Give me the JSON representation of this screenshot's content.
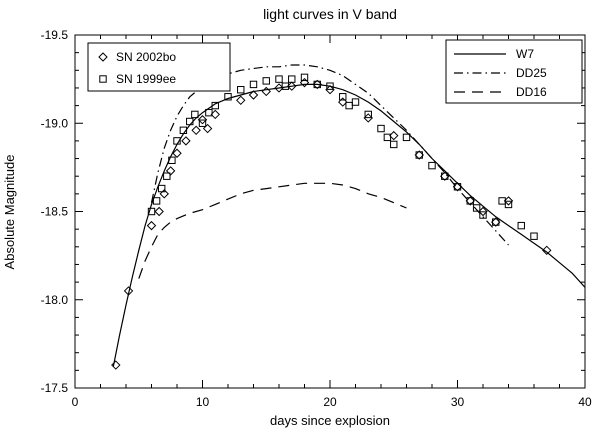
{
  "chart_data": {
    "type": "line",
    "title": "light curves in V band",
    "xlabel": "days since explosion",
    "ylabel": "Absolute Magnitude",
    "xlim": [
      0,
      40
    ],
    "ylim_top": -19.5,
    "ylim_bottom": -17.5,
    "x_ticks": [
      0,
      10,
      20,
      30,
      40
    ],
    "x_minor_step": 2,
    "y_ticks": [
      -19.5,
      -19.0,
      -18.5,
      -18.0,
      -17.5
    ],
    "y_tick_labels": [
      "-19.5",
      "-19.0",
      "-18.5",
      "-18.0",
      "-17.5"
    ],
    "y_minor_step": 0.1,
    "grid": false,
    "colors": {
      "foreground": "#000000",
      "background": "#ffffff"
    },
    "series": [
      {
        "name": "W7",
        "style": "solid",
        "points": [
          [
            3,
            -17.62
          ],
          [
            3.5,
            -17.8
          ],
          [
            4,
            -17.97
          ],
          [
            4.5,
            -18.13
          ],
          [
            5,
            -18.28
          ],
          [
            5.5,
            -18.42
          ],
          [
            6,
            -18.54
          ],
          [
            6.5,
            -18.64
          ],
          [
            7,
            -18.73
          ],
          [
            7.5,
            -18.81
          ],
          [
            8,
            -18.88
          ],
          [
            8.5,
            -18.94
          ],
          [
            9,
            -18.99
          ],
          [
            9.5,
            -19.03
          ],
          [
            10,
            -19.06
          ],
          [
            11,
            -19.11
          ],
          [
            12,
            -19.14
          ],
          [
            13,
            -19.16
          ],
          [
            14,
            -19.18
          ],
          [
            15,
            -19.19
          ],
          [
            16,
            -19.2
          ],
          [
            17,
            -19.21
          ],
          [
            18,
            -19.22
          ],
          [
            19,
            -19.22
          ],
          [
            20,
            -19.21
          ],
          [
            21,
            -19.19
          ],
          [
            22,
            -19.16
          ],
          [
            23,
            -19.12
          ],
          [
            24,
            -19.07
          ],
          [
            25,
            -19.01
          ],
          [
            26,
            -18.95
          ],
          [
            27,
            -18.88
          ],
          [
            28,
            -18.8
          ],
          [
            29,
            -18.73
          ],
          [
            30,
            -18.66
          ],
          [
            31,
            -18.59
          ],
          [
            32,
            -18.53
          ],
          [
            33,
            -18.47
          ],
          [
            34,
            -18.42
          ],
          [
            35,
            -18.37
          ],
          [
            36,
            -18.32
          ],
          [
            37,
            -18.27
          ],
          [
            38,
            -18.21
          ],
          [
            39,
            -18.15
          ],
          [
            40,
            -18.07
          ]
        ]
      },
      {
        "name": "DD25",
        "style": "dashdot",
        "points": [
          [
            6,
            -18.55
          ],
          [
            6.5,
            -18.72
          ],
          [
            7,
            -18.86
          ],
          [
            7.5,
            -18.96
          ],
          [
            8,
            -19.04
          ],
          [
            8.5,
            -19.1
          ],
          [
            9,
            -19.15
          ],
          [
            9.5,
            -19.18
          ],
          [
            10,
            -19.21
          ],
          [
            11,
            -19.25
          ],
          [
            12,
            -19.28
          ],
          [
            13,
            -19.3
          ],
          [
            14,
            -19.31
          ],
          [
            15,
            -19.32
          ],
          [
            16,
            -19.32
          ],
          [
            17,
            -19.33
          ],
          [
            18,
            -19.33
          ],
          [
            19,
            -19.32
          ],
          [
            20,
            -19.3
          ],
          [
            21,
            -19.27
          ],
          [
            22,
            -19.22
          ],
          [
            23,
            -19.17
          ],
          [
            24,
            -19.1
          ],
          [
            25,
            -19.03
          ],
          [
            26,
            -18.96
          ],
          [
            27,
            -18.88
          ],
          [
            28,
            -18.8
          ],
          [
            29,
            -18.72
          ],
          [
            30,
            -18.63
          ],
          [
            31,
            -18.55
          ],
          [
            32,
            -18.47
          ],
          [
            33,
            -18.39
          ],
          [
            34,
            -18.31
          ]
        ]
      },
      {
        "name": "DD16",
        "style": "longdash",
        "points": [
          [
            5,
            -18.12
          ],
          [
            5.5,
            -18.22
          ],
          [
            6,
            -18.3
          ],
          [
            6.5,
            -18.37
          ],
          [
            7,
            -18.41
          ],
          [
            7.5,
            -18.44
          ],
          [
            8,
            -18.46
          ],
          [
            9,
            -18.49
          ],
          [
            10,
            -18.51
          ],
          [
            11,
            -18.54
          ],
          [
            12,
            -18.57
          ],
          [
            13,
            -18.6
          ],
          [
            14,
            -18.62
          ],
          [
            15,
            -18.63
          ],
          [
            16,
            -18.64
          ],
          [
            17,
            -18.65
          ],
          [
            18,
            -18.66
          ],
          [
            19,
            -18.66
          ],
          [
            20,
            -18.66
          ],
          [
            21,
            -18.65
          ],
          [
            22,
            -18.63
          ],
          [
            23,
            -18.6
          ],
          [
            24,
            -18.58
          ],
          [
            25,
            -18.55
          ],
          [
            26,
            -18.52
          ]
        ]
      }
    ],
    "scatter": [
      {
        "name": "SN 2002bo",
        "marker": "diamond",
        "points": [
          [
            3.2,
            -17.63
          ],
          [
            4.2,
            -18.05
          ],
          [
            6,
            -18.42
          ],
          [
            6.6,
            -18.5
          ],
          [
            7,
            -18.6
          ],
          [
            7.5,
            -18.73
          ],
          [
            8,
            -18.83
          ],
          [
            8.7,
            -18.9
          ],
          [
            9.5,
            -18.96
          ],
          [
            10,
            -19.02
          ],
          [
            10.4,
            -18.97
          ],
          [
            11,
            -19.05
          ],
          [
            13,
            -19.13
          ],
          [
            14,
            -19.16
          ],
          [
            15,
            -19.18
          ],
          [
            16,
            -19.2
          ],
          [
            17,
            -19.21
          ],
          [
            18,
            -19.23
          ],
          [
            19,
            -19.22
          ],
          [
            20,
            -19.19
          ],
          [
            21,
            -19.12
          ],
          [
            23,
            -19.03
          ],
          [
            25,
            -18.93
          ],
          [
            27,
            -18.82
          ],
          [
            29,
            -18.7
          ],
          [
            30,
            -18.64
          ],
          [
            31,
            -18.56
          ],
          [
            32,
            -18.5
          ],
          [
            33,
            -18.44
          ],
          [
            34,
            -18.56
          ],
          [
            37,
            -18.28
          ]
        ]
      },
      {
        "name": "SN 1999ee",
        "marker": "square",
        "points": [
          [
            6,
            -18.5
          ],
          [
            6.4,
            -18.56
          ],
          [
            6.8,
            -18.63
          ],
          [
            7.2,
            -18.7
          ],
          [
            7.6,
            -18.79
          ],
          [
            8,
            -18.9
          ],
          [
            8.5,
            -18.96
          ],
          [
            9,
            -19.01
          ],
          [
            9.4,
            -19.05
          ],
          [
            10,
            -19.0
          ],
          [
            10.5,
            -19.06
          ],
          [
            11,
            -19.1
          ],
          [
            12,
            -19.15
          ],
          [
            13,
            -19.19
          ],
          [
            14,
            -19.22
          ],
          [
            15,
            -19.24
          ],
          [
            16,
            -19.25
          ],
          [
            16.5,
            -19.21
          ],
          [
            17,
            -19.25
          ],
          [
            18,
            -19.26
          ],
          [
            19,
            -19.22
          ],
          [
            20,
            -19.21
          ],
          [
            21,
            -19.15
          ],
          [
            21.5,
            -19.1
          ],
          [
            22,
            -19.12
          ],
          [
            23,
            -19.05
          ],
          [
            24,
            -18.97
          ],
          [
            24.5,
            -18.92
          ],
          [
            25,
            -18.88
          ],
          [
            26,
            -18.92
          ],
          [
            27,
            -18.82
          ],
          [
            28,
            -18.76
          ],
          [
            29,
            -18.7
          ],
          [
            30,
            -18.64
          ],
          [
            31,
            -18.56
          ],
          [
            31.5,
            -18.52
          ],
          [
            32,
            -18.48
          ],
          [
            33,
            -18.44
          ],
          [
            33.5,
            -18.56
          ],
          [
            34,
            -18.54
          ],
          [
            35,
            -18.42
          ],
          [
            36,
            -18.36
          ]
        ]
      }
    ],
    "legend_observations": {
      "items": [
        {
          "marker": "diamond",
          "label": "SN 2002bo"
        },
        {
          "marker": "square",
          "label": "SN 1999ee"
        }
      ]
    },
    "legend_models": {
      "items": [
        {
          "style": "solid",
          "label": "W7"
        },
        {
          "style": "dashdot",
          "label": "DD25"
        },
        {
          "style": "longdash",
          "label": "DD16"
        }
      ]
    }
  }
}
